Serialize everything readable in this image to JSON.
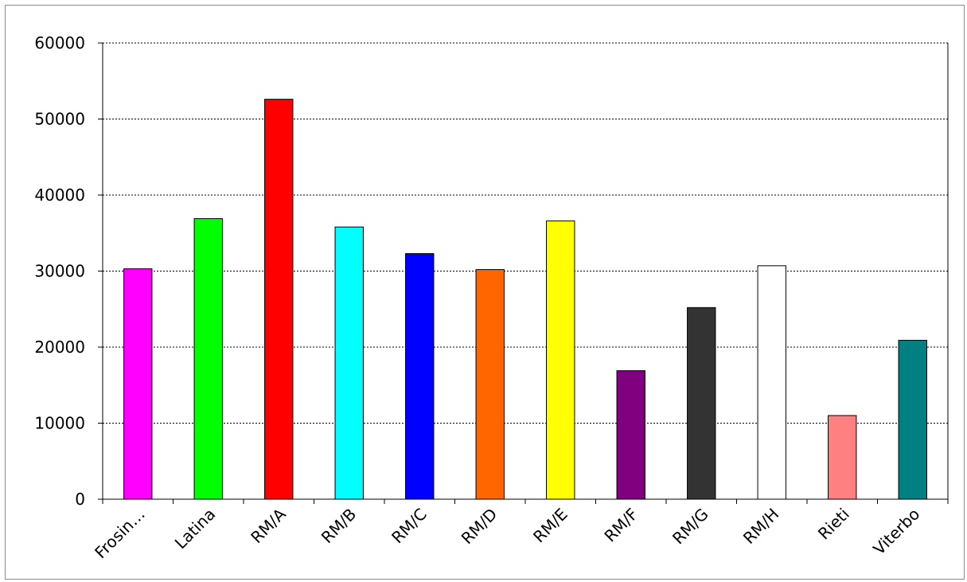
{
  "chart_data": {
    "type": "bar",
    "categories": [
      "Frosin…",
      "Latina",
      "RM/A",
      "RM/B",
      "RM/C",
      "RM/D",
      "RM/E",
      "RM/F",
      "RM/G",
      "RM/H",
      "Rieti",
      "Viterbo"
    ],
    "values": [
      30300,
      36900,
      52600,
      35800,
      32300,
      30200,
      36600,
      16900,
      25200,
      30700,
      11000,
      20900
    ],
    "colors": [
      "#ff00ff",
      "#00ff00",
      "#ff0000",
      "#00ffff",
      "#0000ff",
      "#ff6600",
      "#ffff00",
      "#800080",
      "#333333",
      "#ffffff",
      "#ff8080",
      "#008080"
    ],
    "yticks": [
      "0",
      "10000",
      "20000",
      "30000",
      "40000",
      "50000",
      "60000"
    ],
    "ylim": [
      0,
      60000
    ],
    "grid": true,
    "legend": "none"
  }
}
